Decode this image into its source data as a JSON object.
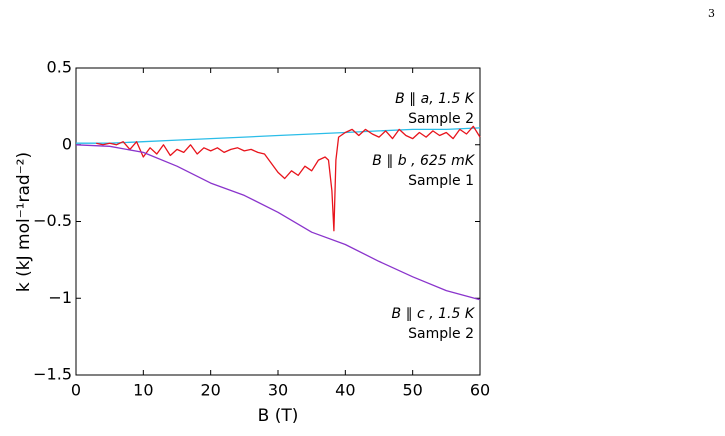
{
  "page_number": "3",
  "chart_data": {
    "type": "line",
    "xlabel": "B (T)",
    "ylabel": "k (kJ mol⁻¹rad⁻²)",
    "xlim": [
      0,
      60
    ],
    "xticks": [
      0,
      10,
      20,
      30,
      40,
      50,
      60
    ],
    "ylim": [
      -1.5,
      0.5
    ],
    "yticks": [
      {
        "value": -1.5,
        "label": "−1.5"
      },
      {
        "value": -1,
        "label": "−1"
      },
      {
        "value": -0.5,
        "label": "−0.5"
      },
      0,
      0.5
    ],
    "series": [
      {
        "name": "B ∥ a, 1.5 K",
        "sample": "Sample 2",
        "color": "#2bbde8",
        "x": [
          0,
          5,
          10,
          15,
          20,
          25,
          30,
          35,
          40,
          45,
          50,
          55,
          60
        ],
        "values": [
          0.01,
          0.01,
          0.02,
          0.03,
          0.04,
          0.05,
          0.06,
          0.07,
          0.08,
          0.09,
          0.1,
          0.1,
          0.11
        ]
      },
      {
        "name": "B ∥ b , 625 mK",
        "sample": "Sample 1",
        "color": "#e8141c",
        "x": [
          3,
          4,
          5,
          6,
          7,
          8,
          9,
          10,
          11,
          12,
          13,
          14,
          15,
          16,
          17,
          18,
          19,
          20,
          21,
          22,
          23,
          24,
          25,
          26,
          27,
          28,
          29,
          30,
          31,
          32,
          33,
          34,
          35,
          36,
          37,
          37.5,
          38,
          38.3,
          38.6,
          39,
          40,
          41,
          42,
          43,
          44,
          45,
          46,
          47,
          48,
          49,
          50,
          51,
          52,
          53,
          54,
          55,
          56,
          57,
          58,
          59,
          60
        ],
        "values": [
          0.01,
          0.0,
          0.01,
          0.0,
          0.02,
          -0.03,
          0.02,
          -0.08,
          -0.02,
          -0.06,
          0.0,
          -0.07,
          -0.03,
          -0.05,
          0.0,
          -0.06,
          -0.02,
          -0.04,
          -0.02,
          -0.05,
          -0.03,
          -0.02,
          -0.04,
          -0.03,
          -0.05,
          -0.06,
          -0.12,
          -0.18,
          -0.22,
          -0.17,
          -0.2,
          -0.14,
          -0.17,
          -0.1,
          -0.08,
          -0.1,
          -0.3,
          -0.56,
          -0.1,
          0.05,
          0.08,
          0.1,
          0.06,
          0.1,
          0.07,
          0.05,
          0.09,
          0.04,
          0.1,
          0.06,
          0.04,
          0.08,
          0.05,
          0.09,
          0.06,
          0.08,
          0.04,
          0.1,
          0.07,
          0.12,
          0.05
        ]
      },
      {
        "name": "B ∥ c , 1.5 K",
        "sample": "Sample 2",
        "color": "#8a34cc",
        "x": [
          0,
          5,
          10,
          15,
          20,
          25,
          30,
          35,
          40,
          45,
          50,
          55,
          60
        ],
        "values": [
          0,
          -0.01,
          -0.05,
          -0.14,
          -0.25,
          -0.33,
          -0.44,
          -0.57,
          -0.65,
          -0.76,
          -0.86,
          -0.95,
          -1.01
        ]
      }
    ]
  }
}
